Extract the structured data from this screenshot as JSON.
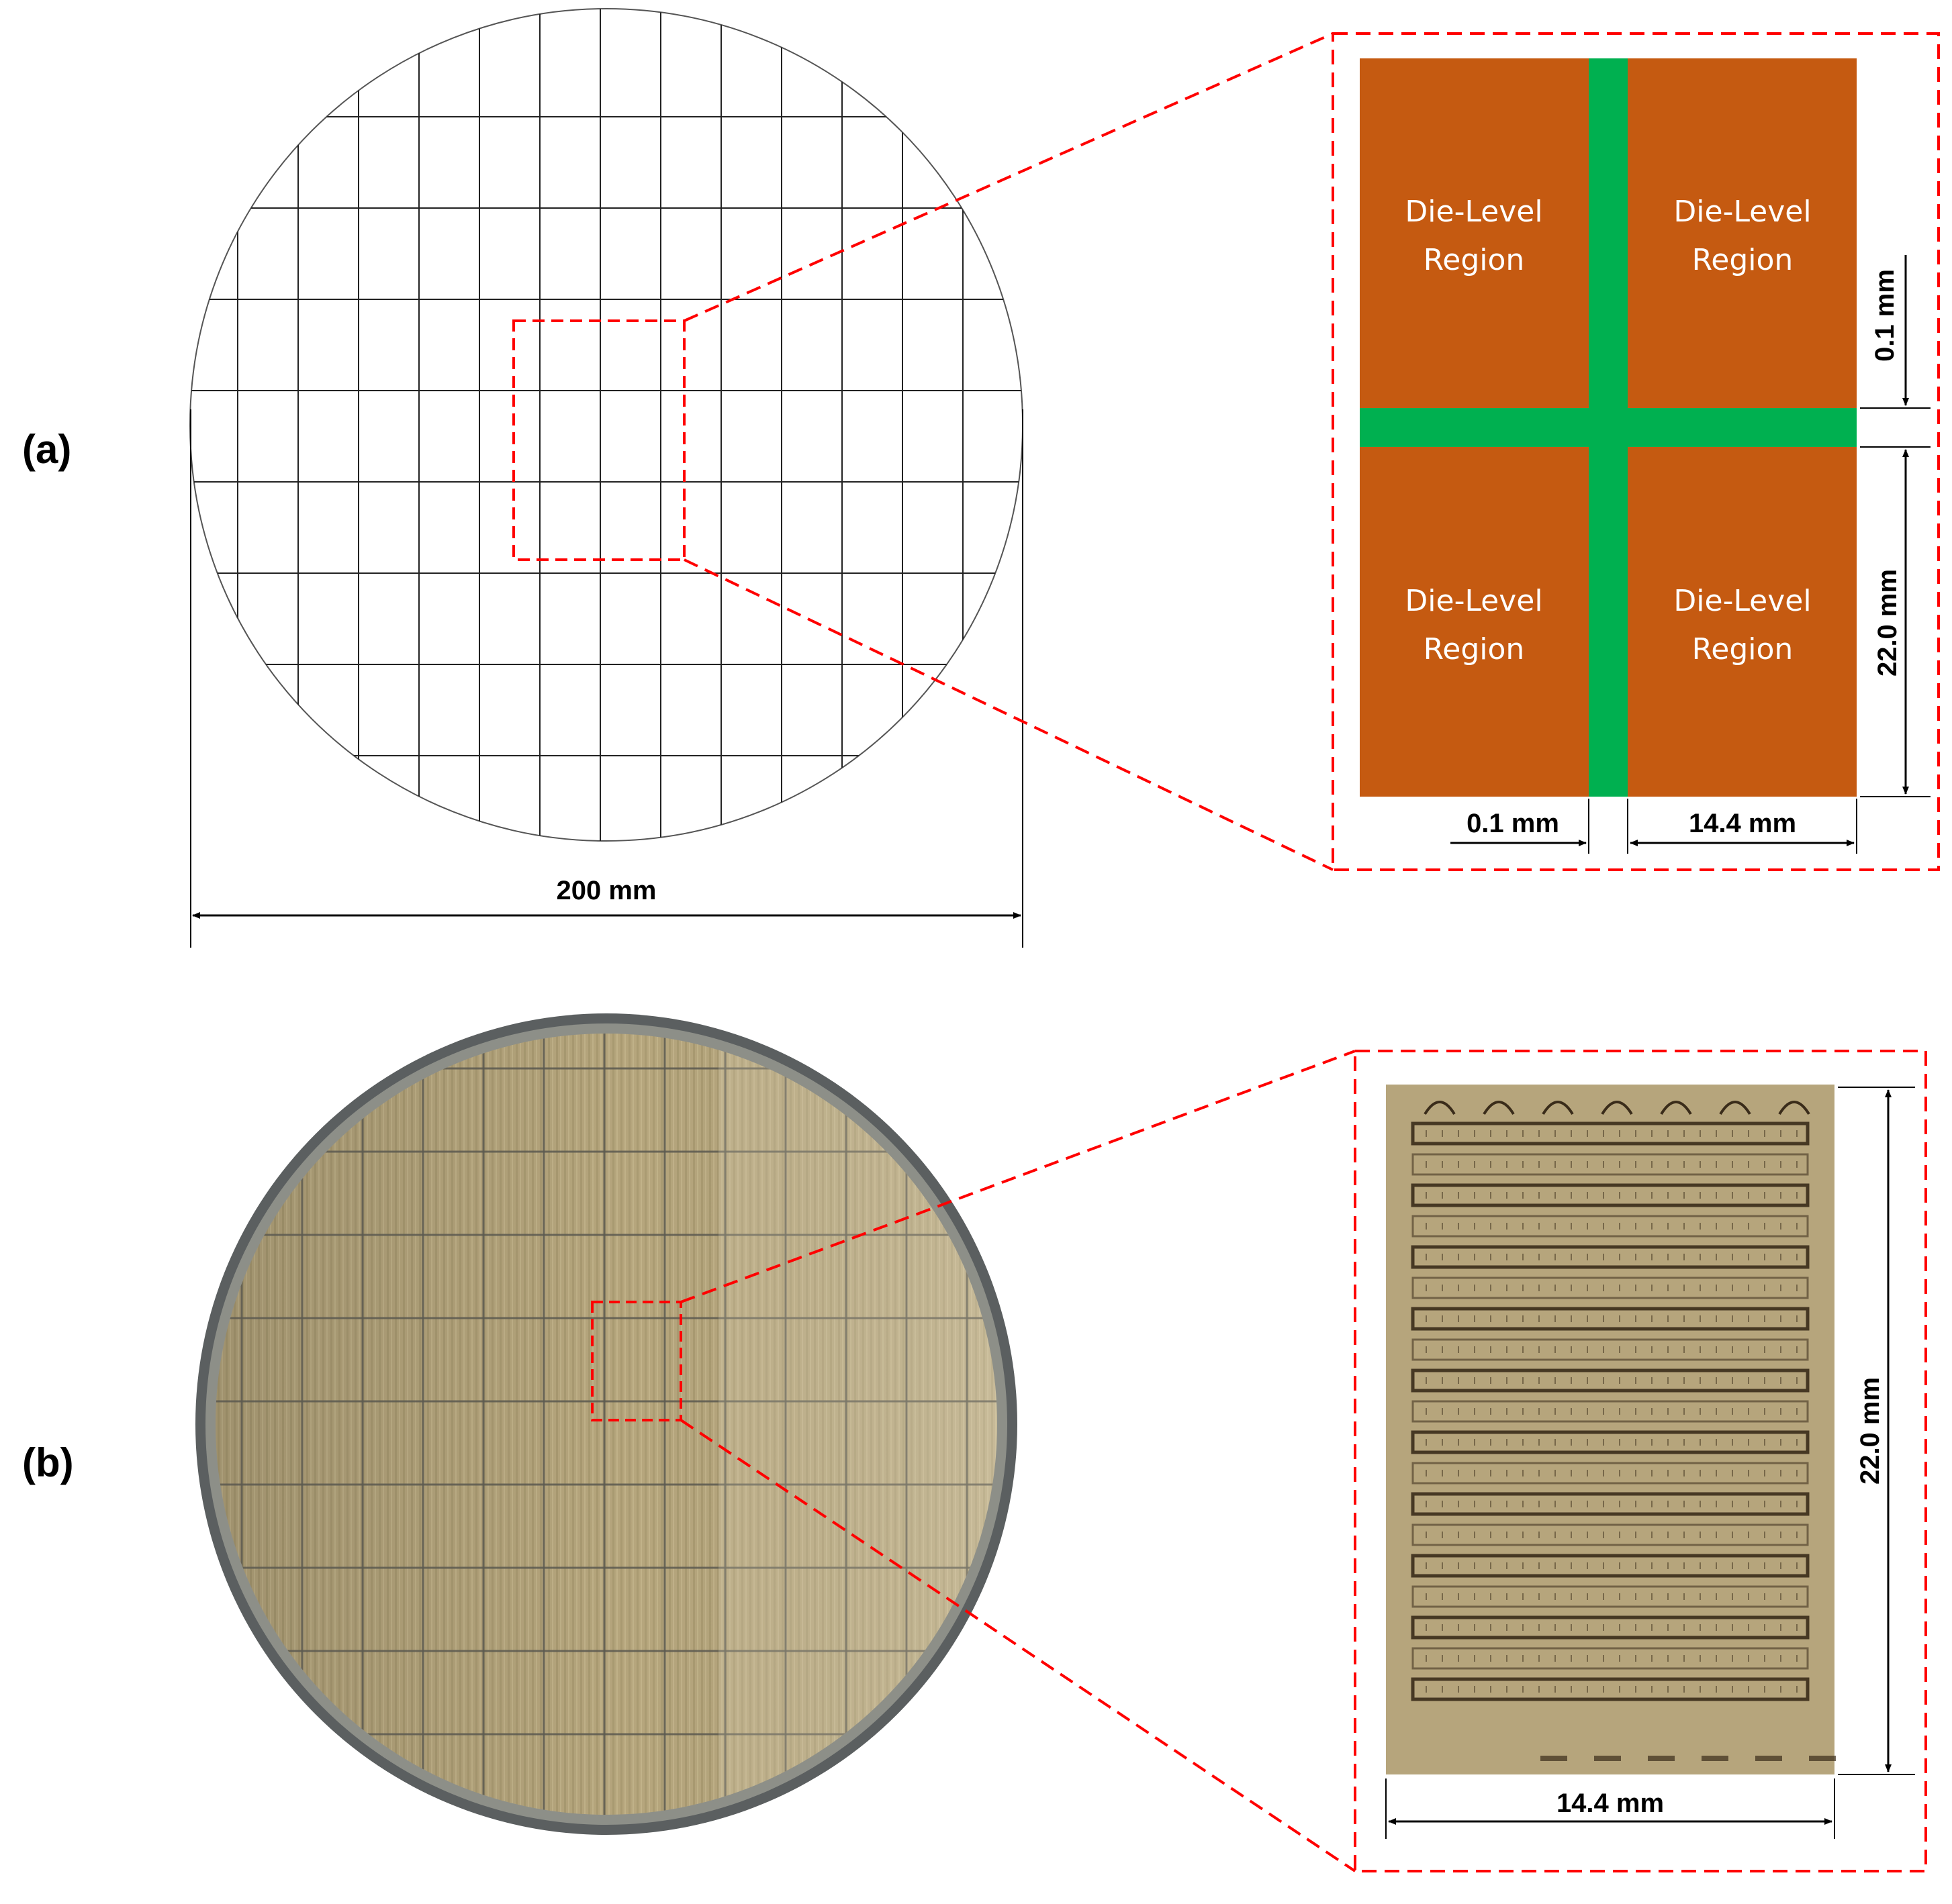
{
  "panels": {
    "a": {
      "label_open": "(",
      "label_letter": "a",
      "label_close": ")"
    },
    "b": {
      "label_open": "(",
      "label_letter": "b",
      "label_close": ")"
    }
  },
  "wafer_schematic": {
    "diameter_label": "200 mm",
    "grid_columns": 13,
    "grid_rows": 9
  },
  "die_layout": {
    "regions": [
      {
        "line1": "Die-Level",
        "line2": "Region"
      },
      {
        "line1": "Die-Level",
        "line2": "Region"
      },
      {
        "line1": "Die-Level",
        "line2": "Region"
      },
      {
        "line1": "Die-Level",
        "line2": "Region"
      }
    ],
    "street_width_v_label": "0.1 mm",
    "street_width_h_label": "0.1 mm",
    "die_height_label": "22.0 mm",
    "die_width_label": "14.4 mm",
    "colors": {
      "die": "#c55a11",
      "street": "#00b050",
      "callout": "#ff0000"
    }
  },
  "wafer_photo": {
    "colors": {
      "rim": "#5b5f60",
      "surface": "#b3a57d",
      "grid": "#5c5a50"
    }
  },
  "die_photo": {
    "height_label": "22.0 mm",
    "width_label": "14.4 mm",
    "colors": {
      "surface": "#b6a57c",
      "trace": "#3a2c1a"
    }
  }
}
